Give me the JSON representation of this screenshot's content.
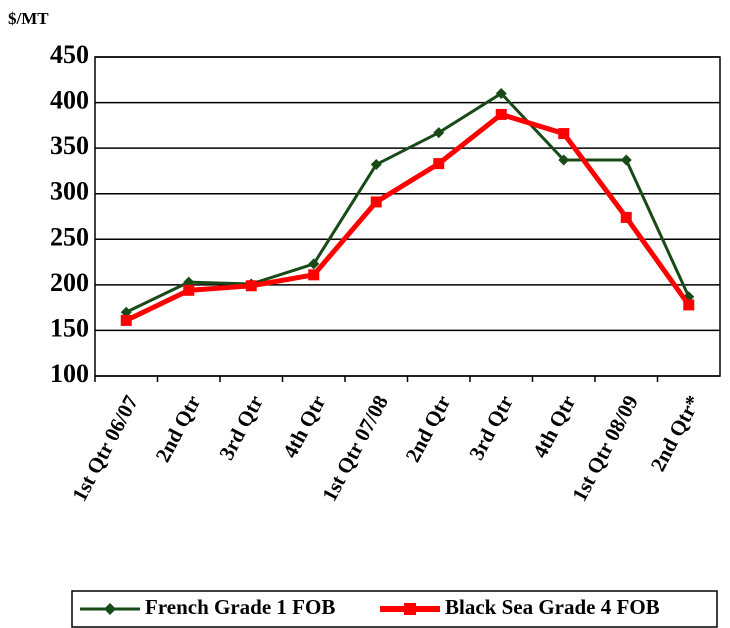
{
  "chart_data": {
    "type": "line",
    "y_label": "$/MT",
    "categories": [
      "1st Qtr 06/07",
      "2nd Qtr",
      "3rd Qtr",
      "4th Qtr",
      "1st Qtr 07/08",
      "2nd Qtr",
      "3rd Qtr",
      "4th Qtr",
      "1st Qtr 08/09",
      "2nd Qtr*"
    ],
    "series": [
      {
        "name": "French Grade 1 FOB",
        "color": "#174a17",
        "marker": "diamond",
        "values": [
          170,
          203,
          201,
          223,
          332,
          367,
          410,
          337,
          337,
          187
        ]
      },
      {
        "name": "Black Sea Grade 4 FOB",
        "color": "#ff0000",
        "marker": "square",
        "values": [
          161,
          194,
          199,
          211,
          291,
          333,
          387,
          366,
          274,
          178
        ]
      }
    ],
    "ylim": [
      100,
      450
    ],
    "yticks": [
      100,
      150,
      200,
      250,
      300,
      350,
      400,
      450
    ],
    "grid": true,
    "legend": "bottom"
  }
}
